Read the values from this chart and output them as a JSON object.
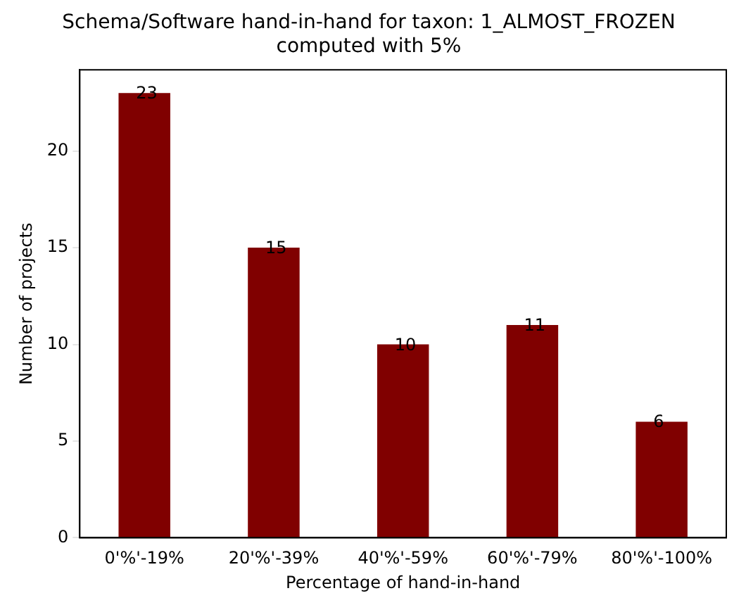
{
  "chart_data": {
    "type": "bar",
    "title": [
      "Schema/Software hand-in-hand for taxon: 1_ALMOST_FROZEN",
      "computed with 5%"
    ],
    "xlabel": "Percentage of hand-in-hand",
    "ylabel": "Number of projects",
    "categories": [
      "0'%'-19%",
      "20'%'-39%",
      "40'%'-59%",
      "60'%'-79%",
      "80'%'-100%"
    ],
    "values": [
      23,
      15,
      10,
      11,
      6
    ],
    "color": "#800000",
    "ylim": [
      0,
      24.2
    ],
    "yticks": [
      0,
      5,
      10,
      15,
      20
    ],
    "grid": false,
    "legend": false,
    "data_labels": true
  }
}
